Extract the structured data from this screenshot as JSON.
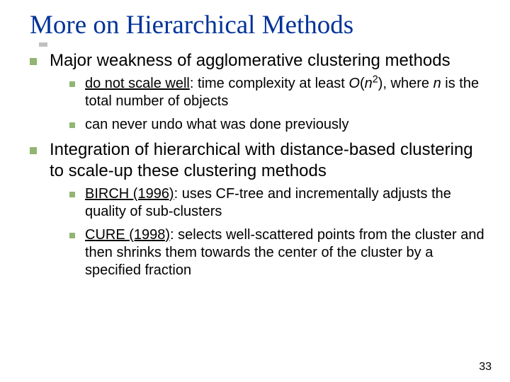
{
  "title": "More on Hierarchical Methods",
  "page_number": "33",
  "colors": {
    "title_color": "#003399",
    "bullet_color": "#92b571",
    "text_color": "#000000",
    "background": "#ffffff"
  },
  "typography": {
    "title_font": "Times New Roman",
    "body_font": "Verdana",
    "title_fontsize": 37,
    "lvl1_fontsize": 24,
    "lvl2_fontsize": 20
  },
  "bullets": [
    {
      "text": "Major weakness of agglomerative clustering methods",
      "children": [
        {
          "pre_underline": "",
          "underline": "do not scale well",
          "post_underline": ": time complexity at least ",
          "italic_O": "O",
          "paren_open": "(",
          "italic_n": "n",
          "sup2": "2",
          "paren_close": "), where ",
          "italic_n2": "n",
          "post_n2": " is the total number of objects"
        },
        {
          "plain": "can never undo what was done previously"
        }
      ]
    },
    {
      "text": "Integration of hierarchical with distance-based clustering to scale-up these clustering methods",
      "children": [
        {
          "underline": "BIRCH (1996)",
          "post_underline": ": uses CF-tree and incrementally adjusts the quality of sub-clusters"
        },
        {
          "underline": "CURE (1998)",
          "post_underline": ": selects well-scattered points from the cluster and then shrinks them towards the center of the cluster by a specified fraction"
        }
      ]
    }
  ]
}
